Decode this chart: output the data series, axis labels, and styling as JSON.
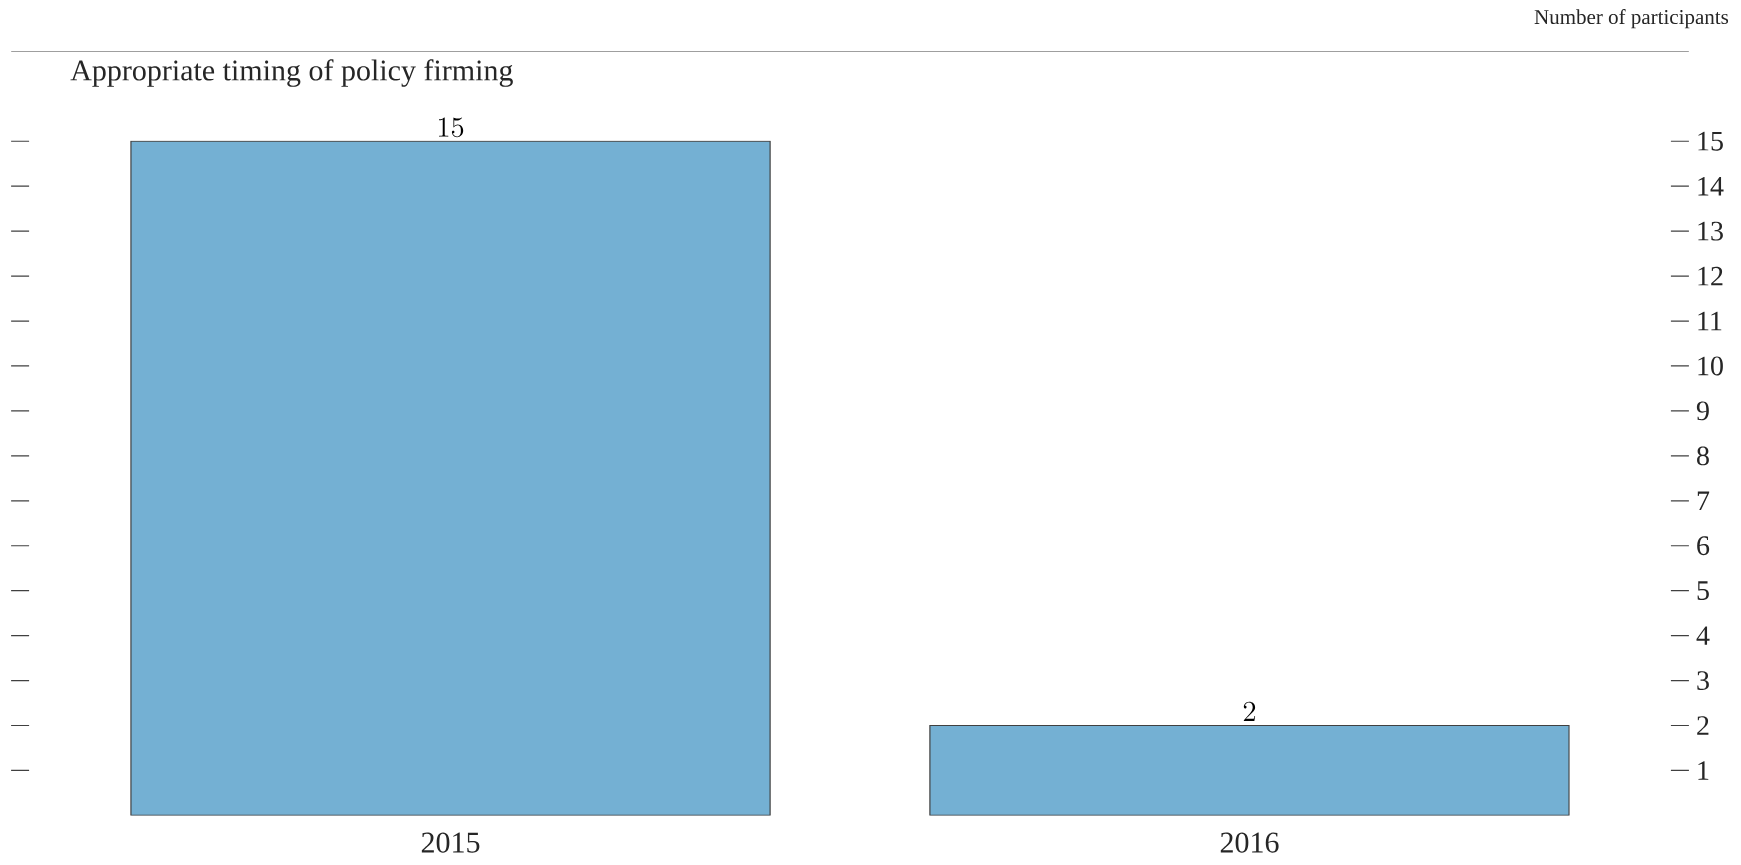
{
  "chart_data": {
    "type": "bar",
    "title": "Appropriate timing of policy firming",
    "ylabel": "Number of participants",
    "categories": [
      "2015",
      "2016"
    ],
    "values": [
      15,
      2
    ],
    "color": "#74b0d3",
    "ylim": [
      0,
      17
    ],
    "yticks": [
      1,
      2,
      3,
      4,
      5,
      6,
      7,
      8,
      9,
      10,
      11,
      12,
      13,
      14,
      15
    ],
    "data_labels": true
  }
}
